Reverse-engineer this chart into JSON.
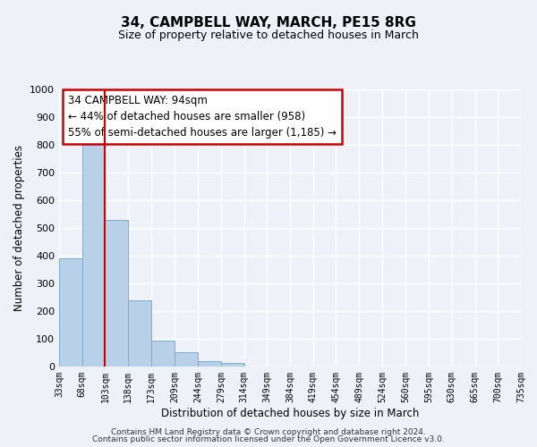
{
  "title": "34, CAMPBELL WAY, MARCH, PE15 8RG",
  "subtitle": "Size of property relative to detached houses in March",
  "xlabel": "Distribution of detached houses by size in March",
  "ylabel": "Number of detached properties",
  "bar_color": "#b8d0e8",
  "bar_edge_color": "#7aaed0",
  "marker_line_color": "#cc0000",
  "bin_edges": [
    33,
    68,
    103,
    138,
    173,
    209,
    244,
    279,
    314,
    349,
    384,
    419,
    454,
    489,
    524,
    560,
    595,
    630,
    665,
    700,
    735
  ],
  "bin_labels": [
    "33sqm",
    "68sqm",
    "103sqm",
    "138sqm",
    "173sqm",
    "209sqm",
    "244sqm",
    "279sqm",
    "314sqm",
    "349sqm",
    "384sqm",
    "419sqm",
    "454sqm",
    "489sqm",
    "524sqm",
    "560sqm",
    "595sqm",
    "630sqm",
    "665sqm",
    "700sqm",
    "735sqm"
  ],
  "bar_heights": [
    390,
    828,
    530,
    240,
    95,
    52,
    20,
    12,
    0,
    0,
    0,
    0,
    0,
    0,
    0,
    0,
    0,
    0,
    0,
    0
  ],
  "ylim": [
    0,
    1000
  ],
  "yticks": [
    0,
    100,
    200,
    300,
    400,
    500,
    600,
    700,
    800,
    900,
    1000
  ],
  "ann_title": "34 CAMPBELL WAY: 94sqm",
  "ann_line1": "← 44% of detached houses are smaller (958)",
  "ann_line2": "55% of semi-detached houses are larger (1,185) →",
  "footer_line1": "Contains HM Land Registry data © Crown copyright and database right 2024.",
  "footer_line2": "Contains public sector information licensed under the Open Government Licence v3.0.",
  "background_color": "#eef2f8"
}
